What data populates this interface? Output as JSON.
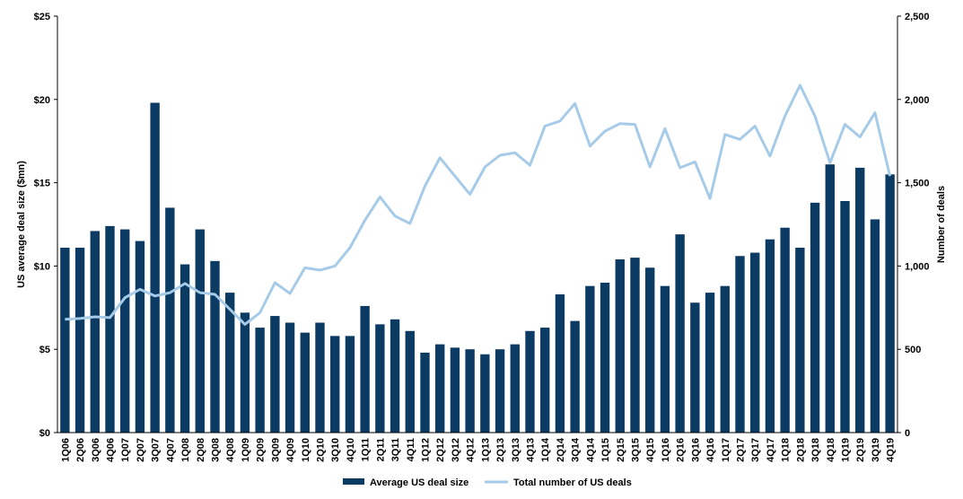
{
  "chart_data": {
    "type": "bar+line",
    "title": "",
    "categories": [
      "1Q06",
      "2Q06",
      "3Q06",
      "4Q06",
      "1Q07",
      "2Q07",
      "3Q07",
      "4Q07",
      "1Q08",
      "2Q08",
      "3Q08",
      "4Q08",
      "1Q09",
      "2Q09",
      "3Q09",
      "4Q09",
      "1Q10",
      "2Q10",
      "3Q10",
      "4Q10",
      "1Q11",
      "2Q11",
      "3Q11",
      "4Q11",
      "1Q12",
      "2Q12",
      "3Q12",
      "4Q12",
      "1Q13",
      "2Q13",
      "3Q13",
      "4Q13",
      "1Q14",
      "2Q14",
      "3Q14",
      "4Q14",
      "1Q15",
      "2Q15",
      "3Q15",
      "4Q15",
      "1Q16",
      "2Q16",
      "3Q16",
      "4Q16",
      "1Q17",
      "2Q17",
      "3Q17",
      "4Q17",
      "1Q18",
      "2Q18",
      "3Q18",
      "4Q18",
      "1Q19",
      "2Q19",
      "3Q19",
      "4Q19"
    ],
    "series": [
      {
        "name": "Average US deal size",
        "kind": "bar",
        "axis": "left",
        "color": "#0b3a63",
        "values": [
          11.1,
          11.1,
          12.1,
          12.4,
          12.2,
          11.5,
          19.8,
          13.5,
          10.1,
          12.2,
          10.3,
          8.4,
          7.2,
          6.3,
          7.0,
          6.6,
          6.0,
          6.6,
          5.8,
          5.8,
          7.6,
          6.5,
          6.8,
          6.1,
          4.8,
          5.3,
          5.1,
          5.0,
          4.7,
          5.0,
          5.3,
          6.1,
          6.3,
          8.3,
          6.7,
          8.8,
          9.0,
          10.4,
          10.5,
          9.9,
          8.8,
          11.9,
          7.8,
          8.4,
          8.8,
          10.6,
          10.8,
          11.6,
          12.3,
          11.1,
          13.8,
          16.1,
          13.9,
          15.9,
          12.8,
          15.5
        ]
      },
      {
        "name": "Total number of US deals",
        "kind": "line",
        "axis": "right",
        "color": "#a6cbe8",
        "values": [
          680,
          685,
          695,
          690,
          810,
          860,
          820,
          840,
          895,
          840,
          830,
          740,
          650,
          720,
          900,
          835,
          990,
          975,
          1000,
          1110,
          1275,
          1415,
          1300,
          1255,
          1480,
          1650,
          1540,
          1430,
          1595,
          1665,
          1680,
          1605,
          1840,
          1870,
          1975,
          1720,
          1810,
          1855,
          1850,
          1595,
          1825,
          1590,
          1625,
          1405,
          1790,
          1760,
          1840,
          1660,
          1900,
          2085,
          1900,
          1620,
          1850,
          1775,
          1920,
          1540
        ]
      }
    ],
    "yleft": {
      "label": "US average deal size ($mn)",
      "ylim": [
        0,
        25
      ],
      "ticks": [
        "$0",
        "$5",
        "$10",
        "$15",
        "$20",
        "$25"
      ],
      "tick_values": [
        0,
        5,
        10,
        15,
        20,
        25
      ]
    },
    "yright": {
      "label": "Number of deals",
      "ylim": [
        0,
        2500
      ],
      "ticks": [
        "0",
        "500",
        "1,000",
        "1,500",
        "2,000",
        "2,500"
      ],
      "tick_values": [
        0,
        500,
        1000,
        1500,
        2000,
        2500
      ]
    },
    "xlabel": "",
    "grid": false,
    "legend_position": "bottom"
  }
}
